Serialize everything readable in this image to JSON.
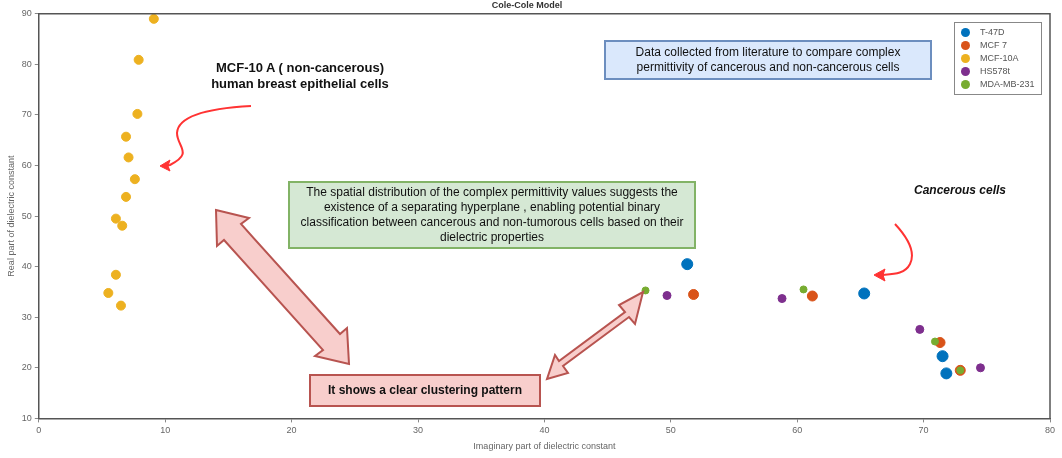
{
  "chart_data": {
    "type": "scatter",
    "title": "Cole-Cole Model",
    "xlabel": "Imaginary part of dielectric constant",
    "ylabel": "Real part of dielectric constant",
    "series": [
      {
        "name": "T-47D",
        "color": "#0072bd",
        "x": [
          51.3,
          65.3,
          71.5,
          71.8
        ],
        "values": [
          40.5,
          34.7,
          22.3,
          18.9
        ]
      },
      {
        "name": "MCF 7",
        "color": "#d95319",
        "x": [
          51.8,
          61.2,
          71.3,
          72.9
        ],
        "values": [
          34.5,
          34.2,
          25.0,
          19.5
        ]
      },
      {
        "name": "MCF-10A",
        "color": "#edb120",
        "x": [
          9.1,
          7.9,
          7.8,
          6.9,
          7.1,
          7.6,
          6.9,
          6.1,
          6.6,
          6.1,
          5.5,
          6.5
        ],
        "values": [
          89.0,
          80.9,
          70.2,
          65.7,
          61.6,
          57.3,
          53.8,
          49.5,
          48.1,
          38.4,
          34.8,
          32.3
        ]
      },
      {
        "name": "HS578t",
        "color": "#7e2f8e",
        "x": [
          49.7,
          58.8,
          69.7,
          74.5
        ],
        "values": [
          34.3,
          33.7,
          27.6,
          20.0
        ]
      },
      {
        "name": "MDA-MB-231",
        "color": "#77ac30",
        "x": [
          48.0,
          60.5,
          70.9,
          72.9
        ],
        "values": [
          35.3,
          35.5,
          25.2,
          19.5
        ]
      }
    ],
    "xlim": [
      0,
      80
    ],
    "xticks": [
      0,
      10,
      20,
      30,
      40,
      50,
      60,
      70,
      80
    ],
    "ylim": [
      10,
      90
    ],
    "yticks": [
      10,
      20,
      30,
      40,
      50,
      60,
      70,
      80,
      90
    ],
    "grid": false,
    "legend": "top right",
    "marker": "circle",
    "annotations": [
      "Data collected from literature to compare complex permittivity of  cancerous and non-cancerous cells",
      "MCF-10 A ( non-cancerous)\nhuman breast epithelial cells",
      "The spatial distribution of the complex permittivity values suggests the existence of a separating hyperplane , enabling potential binary classification between cancerous and non-tumorous cells based on their dielectric properties",
      "Cancerous cells",
      "It shows a clear clustering pattern"
    ]
  }
}
